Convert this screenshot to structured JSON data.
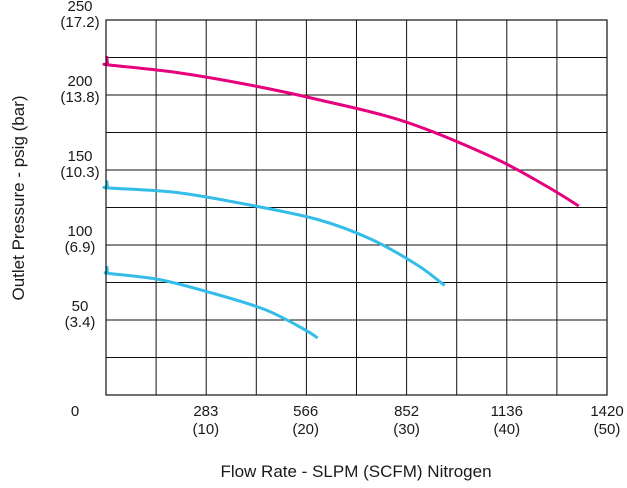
{
  "chart_data": {
    "type": "line",
    "xlabel": "Flow Rate - SLPM (SCFM) Nitrogen",
    "ylabel": "Outlet Pressure - psig (bar)",
    "xlim": [
      0,
      1420
    ],
    "ylim": [
      0,
      250
    ],
    "grid": true,
    "x_ticks": [
      {
        "value": 0,
        "label": "0",
        "sub": ""
      },
      {
        "value": 283,
        "label": "283",
        "sub": "(10)"
      },
      {
        "value": 566,
        "label": "566",
        "sub": "(20)"
      },
      {
        "value": 852,
        "label": "852",
        "sub": "(30)"
      },
      {
        "value": 1136,
        "label": "1136",
        "sub": "(40)"
      },
      {
        "value": 1420,
        "label": "1420",
        "sub": "(50)"
      }
    ],
    "y_ticks": [
      {
        "value": 50,
        "label": "50",
        "sub": "(3.4)"
      },
      {
        "value": 100,
        "label": "100",
        "sub": "(6.9)"
      },
      {
        "value": 150,
        "label": "150",
        "sub": "(10.3)"
      },
      {
        "value": 200,
        "label": "200",
        "sub": "(13.8)"
      },
      {
        "value": 250,
        "label": "250",
        "sub": "(17.2)"
      }
    ],
    "series": [
      {
        "color": "#e6007e",
        "points": [
          [
            2,
            226
          ],
          [
            4,
            221
          ],
          [
            10,
            220
          ],
          [
            200,
            215
          ],
          [
            400,
            207
          ],
          [
            600,
            197
          ],
          [
            850,
            182
          ],
          [
            1100,
            158
          ],
          [
            1250,
            139
          ],
          [
            1340,
            126
          ]
        ]
      },
      {
        "color": "#33bde8",
        "points": [
          [
            2,
            143
          ],
          [
            4,
            139
          ],
          [
            10,
            138
          ],
          [
            200,
            135
          ],
          [
            400,
            127
          ],
          [
            600,
            117
          ],
          [
            750,
            104
          ],
          [
            880,
            87
          ],
          [
            960,
            73
          ]
        ]
      },
      {
        "color": "#33bde8",
        "points": [
          [
            2,
            86
          ],
          [
            4,
            82
          ],
          [
            10,
            81
          ],
          [
            150,
            77
          ],
          [
            300,
            68
          ],
          [
            450,
            57
          ],
          [
            560,
            44
          ],
          [
            600,
            38
          ]
        ]
      }
    ]
  }
}
